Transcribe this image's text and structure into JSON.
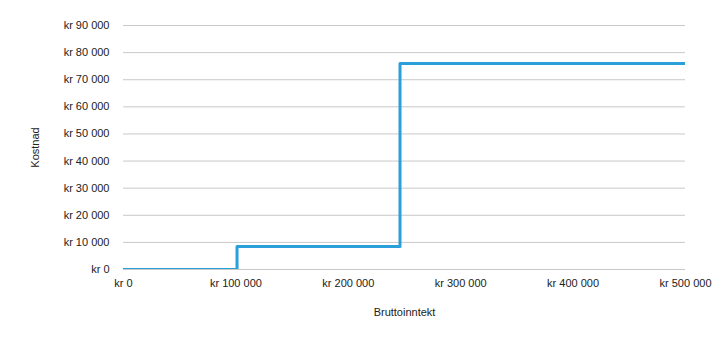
{
  "chart_data": {
    "type": "line",
    "x_label": "Bruttoinntekt",
    "y_label": "Kostnad",
    "x": [
      0,
      101000,
      246000,
      500000
    ],
    "values": [
      0,
      8500,
      76000,
      76000
    ],
    "color": "#2b9fd9",
    "line_style": "step",
    "xlim": [
      0,
      500000
    ],
    "xticks": [
      {
        "value": 0,
        "label": "kr 0"
      },
      {
        "value": 100000,
        "label": "kr 100 000"
      },
      {
        "value": 200000,
        "label": "kr 200 000"
      },
      {
        "value": 300000,
        "label": "kr 300 000"
      },
      {
        "value": 400000,
        "label": "kr 400 000"
      },
      {
        "value": 500000,
        "label": "kr 500 000"
      }
    ],
    "ylim": [
      0,
      90000
    ],
    "yticks": [
      {
        "value": 0,
        "label": "kr 0"
      },
      {
        "value": 10000,
        "label": "kr 10 000"
      },
      {
        "value": 20000,
        "label": "kr 20 000"
      },
      {
        "value": 30000,
        "label": "kr 30 000"
      },
      {
        "value": 40000,
        "label": "kr 40 000"
      },
      {
        "value": 50000,
        "label": "kr 50 000"
      },
      {
        "value": 60000,
        "label": "kr 60 000"
      },
      {
        "value": 70000,
        "label": "kr 70 000"
      },
      {
        "value": 80000,
        "label": "kr 80 000"
      },
      {
        "value": 90000,
        "label": "kr 90 000"
      }
    ],
    "grid": true
  }
}
